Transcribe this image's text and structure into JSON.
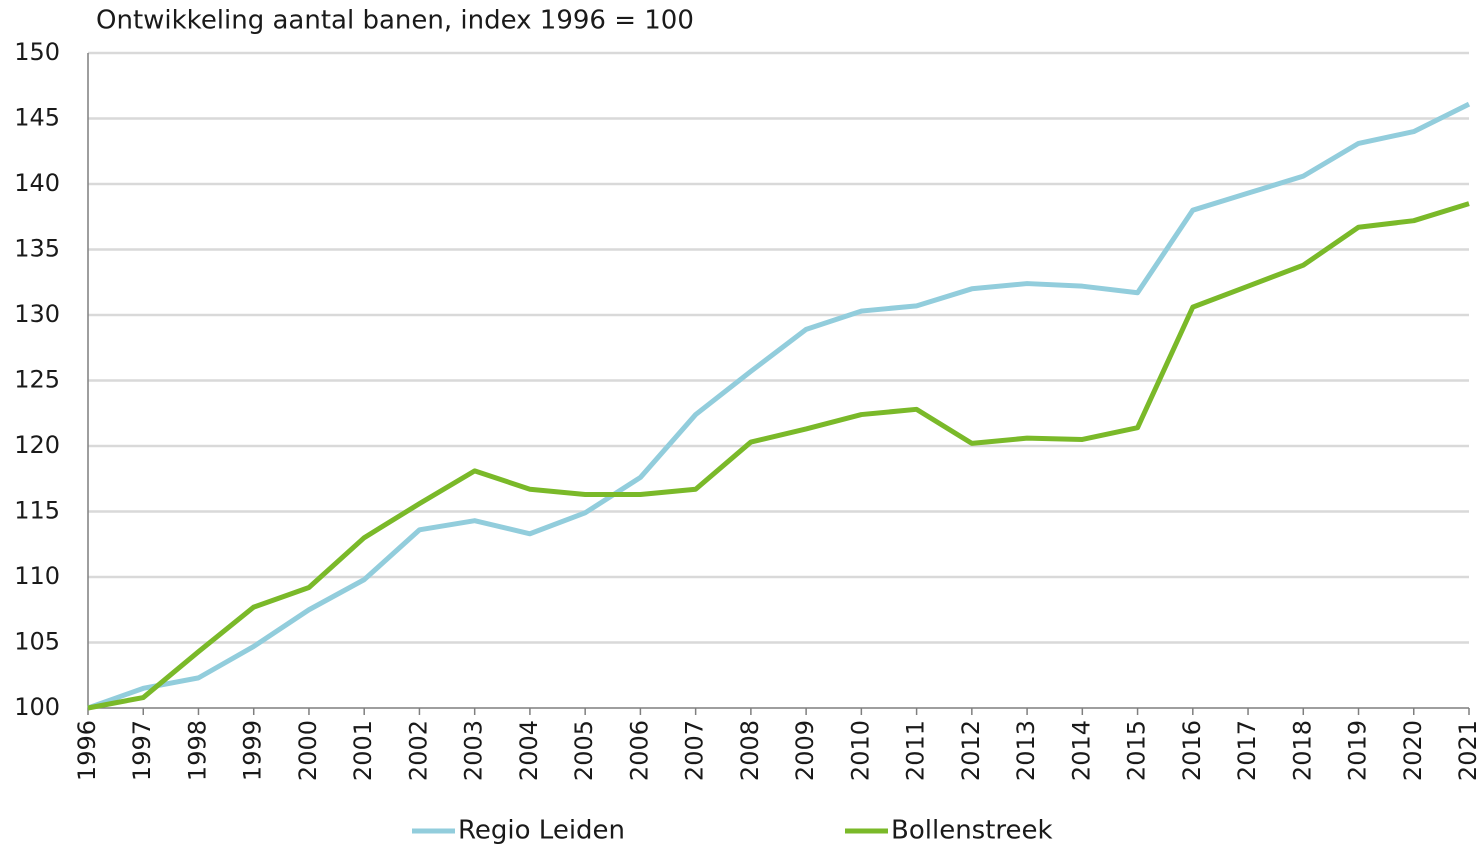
{
  "chart_data": {
    "type": "line",
    "title": "Ontwikkeling aantal banen, index 1996 = 100",
    "categories": [
      "1996",
      "1997",
      "1998",
      "1999",
      "2000",
      "2001",
      "2002",
      "2003",
      "2004",
      "2005",
      "2006",
      "2007",
      "2008",
      "2009",
      "2010",
      "2011",
      "2012",
      "2013",
      "2014",
      "2015",
      "2016",
      "2017",
      "2018",
      "2019",
      "2020",
      "2021"
    ],
    "series": [
      {
        "name": "Regio Leiden",
        "color": "#92cddc",
        "values": [
          100,
          101.5,
          102.3,
          104.7,
          107.5,
          109.8,
          113.6,
          114.3,
          113.3,
          114.9,
          117.6,
          122.4,
          125.7,
          128.9,
          130.3,
          130.7,
          132.0,
          132.4,
          132.2,
          131.7,
          138.0,
          139.3,
          140.6,
          143.1,
          144.0,
          146.1
        ]
      },
      {
        "name": "Bollenstreek",
        "color": "#7ab929",
        "values": [
          100,
          100.8,
          104.3,
          107.7,
          109.2,
          113.0,
          115.6,
          118.1,
          116.7,
          116.3,
          116.3,
          116.7,
          120.3,
          121.3,
          122.4,
          122.8,
          120.2,
          120.6,
          120.5,
          121.4,
          130.6,
          132.2,
          133.8,
          136.7,
          137.2,
          138.5
        ]
      }
    ],
    "ylim": [
      100,
      150
    ],
    "yticks": [
      100,
      105,
      110,
      115,
      120,
      125,
      130,
      135,
      140,
      145,
      150
    ],
    "grid": true,
    "legend": "bottom"
  }
}
